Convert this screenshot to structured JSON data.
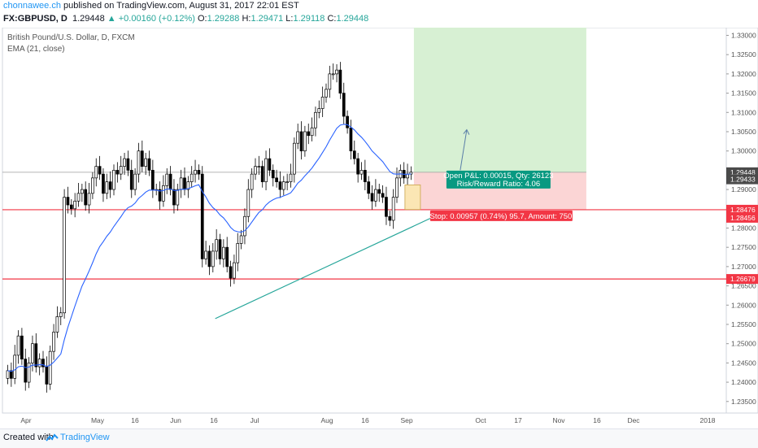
{
  "header": {
    "author": "chonnawee.ch",
    "published_text": " published on TradingView.com, August 31, 2017 22:01 EST",
    "symbol": "FX:GBPUSD, D",
    "last": "1.29448",
    "change": "+0.00160 (+0.12%)",
    "o_label": "O:",
    "o": "1.29288",
    "h_label": "H:",
    "h": "1.29471",
    "l_label": "L:",
    "l": "1.29118",
    "c_label": "C:",
    "c": "1.29448"
  },
  "legend": {
    "title": "British Pound/U.S. Dollar, D, FXCM",
    "indicator": "EMA (21, close)"
  },
  "footer": {
    "created": "Created with",
    "brand": "TradingView"
  },
  "colors": {
    "up": "#ffffff",
    "down": "#000000",
    "ema": "#2962ff",
    "hline": "#f23645",
    "trend": "#26a69a",
    "profit_zone": "#d7f0d3",
    "loss_zone": "#fbd5d5",
    "label_green": "#089981",
    "label_red": "#f23645"
  },
  "chart_data": {
    "type": "candlestick",
    "ylim": [
      1.232,
      1.332
    ],
    "y_ticks": [
      "1.33000",
      "1.32500",
      "1.32000",
      "1.31500",
      "1.31000",
      "1.30500",
      "1.30000",
      "1.29000",
      "1.28000",
      "1.27500",
      "1.27000",
      "1.26500",
      "1.26000",
      "1.25500",
      "1.25000",
      "1.24500",
      "1.24000",
      "1.23500"
    ],
    "x_labels": [
      "Apr",
      "May",
      "16",
      "Jun",
      "16",
      "Jul",
      "Aug",
      "16",
      "Sep",
      "Oct",
      "17",
      "Nov",
      "16",
      "Dec",
      "2018"
    ],
    "price_labels": [
      {
        "text": "1.29448",
        "value": 1.29448,
        "style": "dark"
      },
      {
        "text": "1.29433",
        "value": 1.29433,
        "style": "dark"
      },
      {
        "text": "1.28476",
        "value": 1.28476,
        "style": "red"
      },
      {
        "text": "1.28456",
        "value": 1.28456,
        "style": "red"
      },
      {
        "text": "1.26679",
        "value": 1.26679,
        "style": "red"
      }
    ],
    "horizontal_lines": [
      1.28476,
      1.26679
    ],
    "trendline": {
      "start": [
        "2017-06-12",
        1.2565
      ],
      "end": [
        "2017-09-04",
        1.2825
      ]
    },
    "position": {
      "entry": 1.29448,
      "stop": 1.28476,
      "target": 1.333,
      "open_pnl_text": "Open P&L: 0.00015, Qty: 26123",
      "rr_text": "Risk/Reward Ratio: 4.06",
      "stop_text": "Stop: 0.00957 (0.74%) 95.7, Amount: 750"
    },
    "closes": [
      1.243,
      1.241,
      1.247,
      1.252,
      1.246,
      1.24,
      1.245,
      1.25,
      1.244,
      1.246,
      1.244,
      1.2395,
      1.248,
      1.253,
      1.257,
      1.258,
      1.288,
      1.286,
      1.285,
      1.287,
      1.289,
      1.29,
      1.286,
      1.289,
      1.293,
      1.296,
      1.294,
      1.289,
      1.292,
      1.29,
      1.295,
      1.294,
      1.296,
      1.298,
      1.295,
      1.29,
      1.294,
      1.3,
      1.296,
      1.298,
      1.295,
      1.29,
      1.29,
      1.287,
      1.291,
      1.294,
      1.29,
      1.286,
      1.29,
      1.293,
      1.29,
      1.292,
      1.294,
      1.295,
      1.294,
      1.272,
      1.274,
      1.27,
      1.274,
      1.277,
      1.272,
      1.275,
      1.27,
      1.267,
      1.271,
      1.276,
      1.278,
      1.283,
      1.29,
      1.294,
      1.296,
      1.296,
      1.292,
      1.298,
      1.295,
      1.293,
      1.292,
      1.29,
      1.292,
      1.292,
      1.294,
      1.302,
      1.305,
      1.3,
      1.305,
      1.304,
      1.306,
      1.31,
      1.311,
      1.314,
      1.316,
      1.32,
      1.32,
      1.321,
      1.315,
      1.309,
      1.306,
      1.3,
      1.298,
      1.294,
      1.295,
      1.292,
      1.289,
      1.287,
      1.29,
      1.289,
      1.288,
      1.283,
      1.282,
      1.288,
      1.293,
      1.295,
      1.293,
      1.294,
      1.2945
    ]
  }
}
